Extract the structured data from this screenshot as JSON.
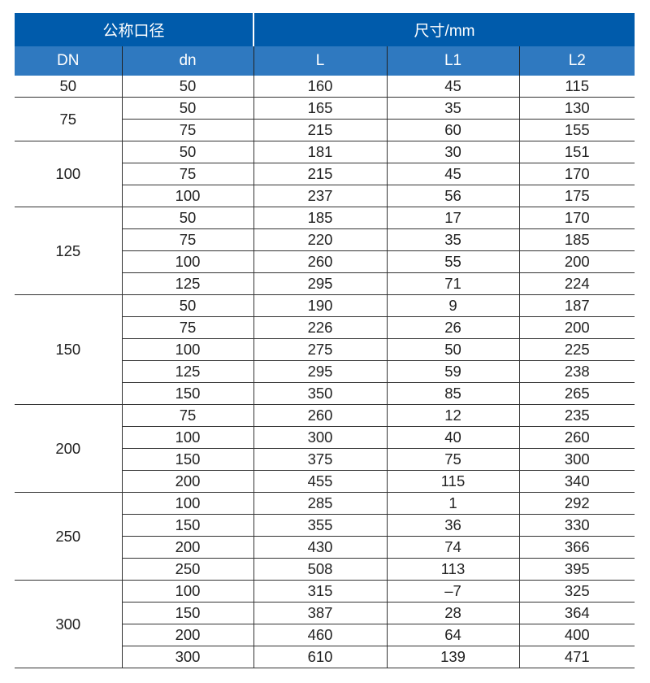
{
  "header": {
    "group1": "公称口径",
    "group2": "尺寸/mm",
    "columns": [
      "DN",
      "dn",
      "L",
      "L1",
      "L2"
    ]
  },
  "groups": [
    {
      "DN": "50",
      "rows": [
        [
          "50",
          "160",
          "45",
          "115"
        ]
      ]
    },
    {
      "DN": "75",
      "rows": [
        [
          "50",
          "165",
          "35",
          "130"
        ],
        [
          "75",
          "215",
          "60",
          "155"
        ]
      ]
    },
    {
      "DN": "100",
      "rows": [
        [
          "50",
          "181",
          "30",
          "151"
        ],
        [
          "75",
          "215",
          "45",
          "170"
        ],
        [
          "100",
          "237",
          "56",
          "175"
        ]
      ]
    },
    {
      "DN": "125",
      "rows": [
        [
          "50",
          "185",
          "17",
          "170"
        ],
        [
          "75",
          "220",
          "35",
          "185"
        ],
        [
          "100",
          "260",
          "55",
          "200"
        ],
        [
          "125",
          "295",
          "71",
          "224"
        ]
      ]
    },
    {
      "DN": "150",
      "rows": [
        [
          "50",
          "190",
          "9",
          "187"
        ],
        [
          "75",
          "226",
          "26",
          "200"
        ],
        [
          "100",
          "275",
          "50",
          "225"
        ],
        [
          "125",
          "295",
          "59",
          "238"
        ],
        [
          "150",
          "350",
          "85",
          "265"
        ]
      ]
    },
    {
      "DN": "200",
      "rows": [
        [
          "75",
          "260",
          "12",
          "235"
        ],
        [
          "100",
          "300",
          "40",
          "260"
        ],
        [
          "150",
          "375",
          "75",
          "300"
        ],
        [
          "200",
          "455",
          "115",
          "340"
        ]
      ]
    },
    {
      "DN": "250",
      "rows": [
        [
          "100",
          "285",
          "1",
          "292"
        ],
        [
          "150",
          "355",
          "36",
          "330"
        ],
        [
          "200",
          "430",
          "74",
          "366"
        ],
        [
          "250",
          "508",
          "113",
          "395"
        ]
      ]
    },
    {
      "DN": "300",
      "rows": [
        [
          "100",
          "315",
          "–7",
          "325"
        ],
        [
          "150",
          "387",
          "28",
          "364"
        ],
        [
          "200",
          "460",
          "64",
          "400"
        ],
        [
          "300",
          "610",
          "139",
          "471"
        ]
      ]
    }
  ]
}
